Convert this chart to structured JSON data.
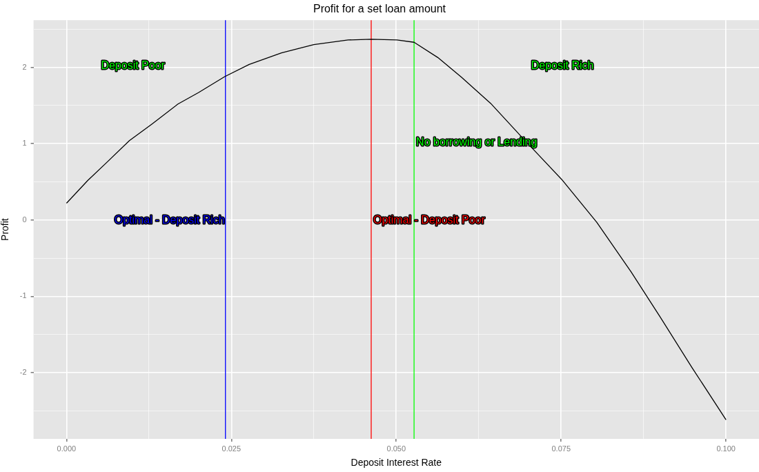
{
  "chart_data": {
    "type": "line",
    "title": "Profit for a set loan amount",
    "xlabel": "Deposit Interest Rate",
    "ylabel": "Profit",
    "x": [
      0,
      0.00325,
      0.00605,
      0.00954,
      0.013,
      0.0169,
      0.02,
      0.024,
      0.0277,
      0.0326,
      0.0375,
      0.0427,
      0.0462,
      0.0501,
      0.0527,
      0.0563,
      0.0599,
      0.0643,
      0.0691,
      0.0751,
      0.0804,
      0.0856,
      0.09,
      0.0948,
      0.1
    ],
    "series": [
      {
        "color": "#000000",
        "values": [
          0.22,
          0.52,
          0.75,
          1.04,
          1.26,
          1.52,
          1.67,
          1.88,
          2.04,
          2.19,
          2.3,
          2.36,
          2.37,
          2.36,
          2.33,
          2.13,
          1.87,
          1.53,
          1.08,
          0.53,
          -0.03,
          -0.68,
          -1.27,
          -1.93,
          -2.62
        ]
      }
    ],
    "xlim": [
      -0.005,
      0.105
    ],
    "ylim": [
      -2.87,
      2.62
    ],
    "xticks": [
      {
        "value": 0,
        "label": "0.000"
      },
      {
        "value": 0.0125,
        "label": null
      },
      {
        "value": 0.025,
        "label": "0.025"
      },
      {
        "value": 0.0375,
        "label": null
      },
      {
        "value": 0.05,
        "label": "0.050"
      },
      {
        "value": 0.0625,
        "label": null
      },
      {
        "value": 0.075,
        "label": "0.075"
      },
      {
        "value": 0.0875,
        "label": null
      },
      {
        "value": 0.1,
        "label": "0.100"
      }
    ],
    "yticks": [
      {
        "value": -2.5,
        "label": null
      },
      -2,
      {
        "value": -1.5,
        "label": null
      },
      -1,
      {
        "value": -0.5,
        "label": null
      },
      0,
      {
        "value": 0.5,
        "label": null
      },
      1,
      {
        "value": 1.5,
        "label": null
      },
      2,
      {
        "value": 2.5,
        "label": null
      }
    ],
    "ref_lines": [
      {
        "axis": "x",
        "value": 0.0241,
        "label": "Optimal - Deposit Rich",
        "color": "#0000ff"
      },
      {
        "axis": "x",
        "value": 0.0462,
        "label": "Optimal - Deposit Poor",
        "color": "#ff0000"
      },
      {
        "axis": "x",
        "value": 0.0527,
        "label": "No borrowing or Lending",
        "color": "#00ff00"
      }
    ],
    "annotations": [
      "Deposit Poor",
      "Deposit Rich"
    ],
    "grid": true,
    "legend": false,
    "marker": "none",
    "line_style": "solid"
  }
}
